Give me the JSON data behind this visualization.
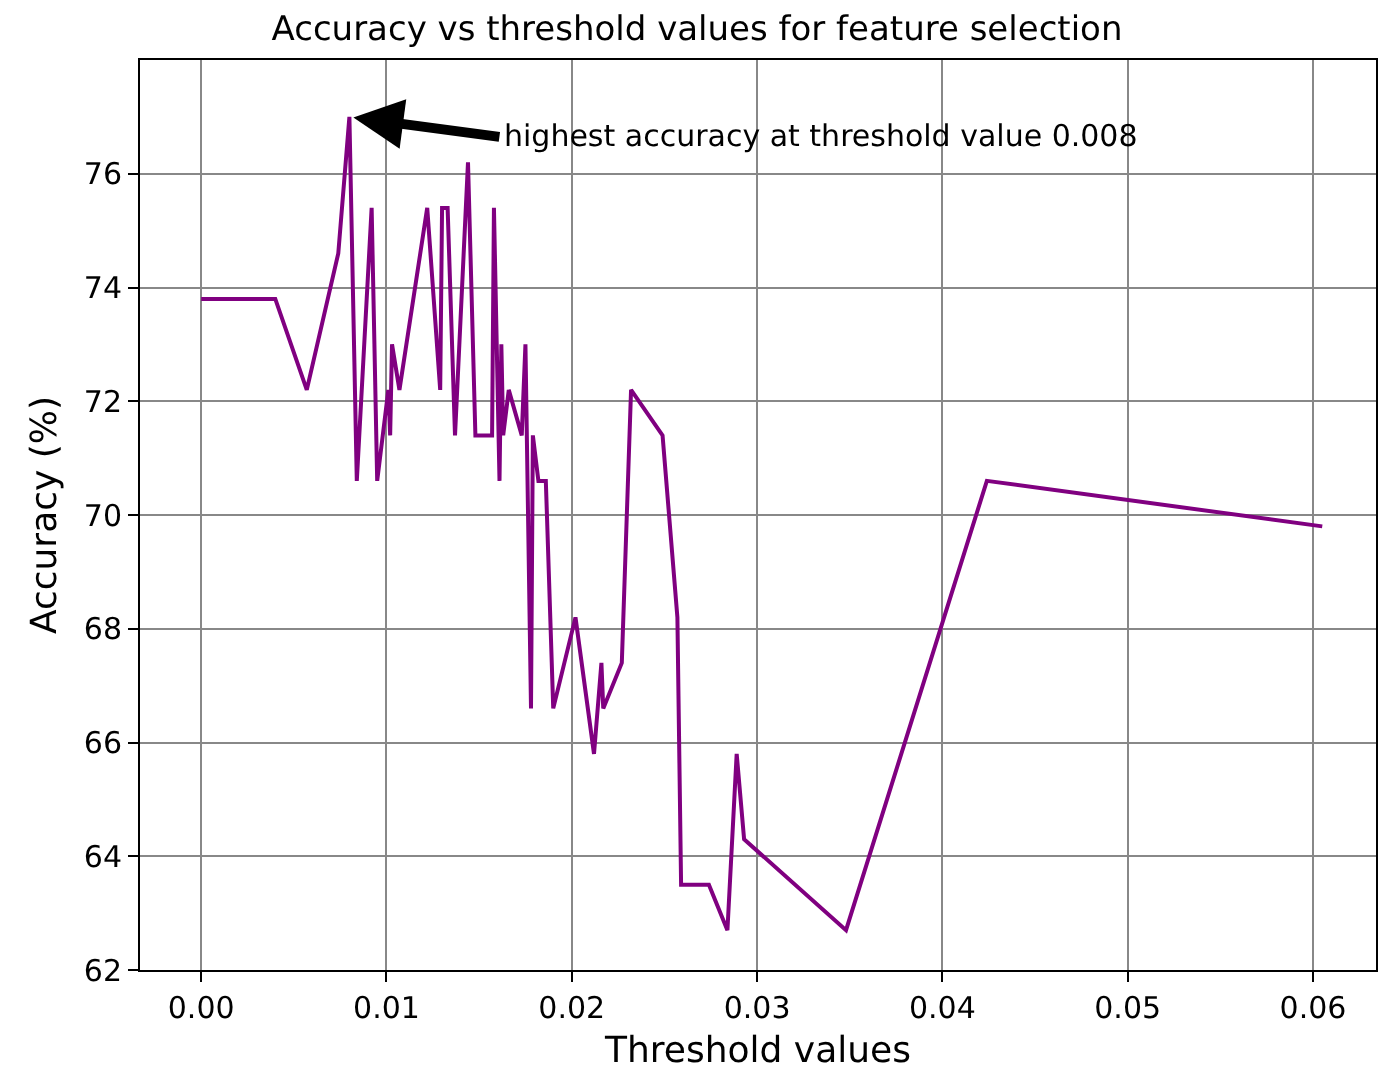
{
  "chart_data": {
    "type": "line",
    "title": "Accuracy vs threshold values for feature selection",
    "xlabel": "Threshold values",
    "ylabel": "Accuracy (%)",
    "x": [
      0,
      0.004,
      0.0057,
      0.0074,
      0.008,
      0.0084,
      0.0092,
      0.0095,
      0.0101,
      0.0102,
      0.0103,
      0.0107,
      0.0122,
      0.0129,
      0.013,
      0.0133,
      0.0137,
      0.0144,
      0.0148,
      0.0157,
      0.0158,
      0.0161,
      0.0162,
      0.0163,
      0.0166,
      0.0173,
      0.0175,
      0.0178,
      0.0179,
      0.0182,
      0.0186,
      0.019,
      0.0202,
      0.0212,
      0.0216,
      0.0217,
      0.0227,
      0.0232,
      0.0249,
      0.0257,
      0.0259,
      0.0274,
      0.0284,
      0.0289,
      0.0293,
      0.0348,
      0.0424,
      0.0605
    ],
    "series": [
      {
        "color": "#800080",
        "values": [
          73.8,
          73.8,
          72.2,
          74.6,
          77.0,
          70.6,
          75.4,
          70.6,
          72.2,
          71.4,
          73.0,
          72.2,
          75.4,
          72.2,
          75.4,
          75.4,
          71.4,
          76.2,
          71.4,
          71.4,
          75.4,
          70.6,
          73.0,
          71.4,
          72.2,
          71.4,
          73.0,
          66.6,
          71.4,
          70.6,
          70.6,
          66.6,
          68.2,
          65.8,
          67.4,
          66.6,
          67.4,
          72.2,
          71.4,
          68.2,
          63.5,
          63.5,
          62.7,
          65.8,
          64.3,
          62.7,
          70.6,
          69.8
        ]
      }
    ],
    "annotations": [
      {
        "text": "highest accuracy at threshold value 0.008",
        "x": 0.008,
        "y": 77.0
      }
    ],
    "xlim": [
      -0.0033,
      0.0634
    ],
    "ylim": [
      62,
      78
    ],
    "xticks": [
      {
        "value": 0,
        "label": "0.00"
      },
      {
        "value": 0.01,
        "label": "0.01"
      },
      {
        "value": 0.02,
        "label": "0.02"
      },
      {
        "value": 0.03,
        "label": "0.03"
      },
      {
        "value": 0.04,
        "label": "0.04"
      },
      {
        "value": 0.05,
        "label": "0.05"
      },
      {
        "value": 0.06,
        "label": "0.06"
      }
    ],
    "yticks": [
      62,
      64,
      66,
      68,
      70,
      72,
      74,
      76
    ],
    "grid": true,
    "marker": "none",
    "line_style": "solid"
  }
}
